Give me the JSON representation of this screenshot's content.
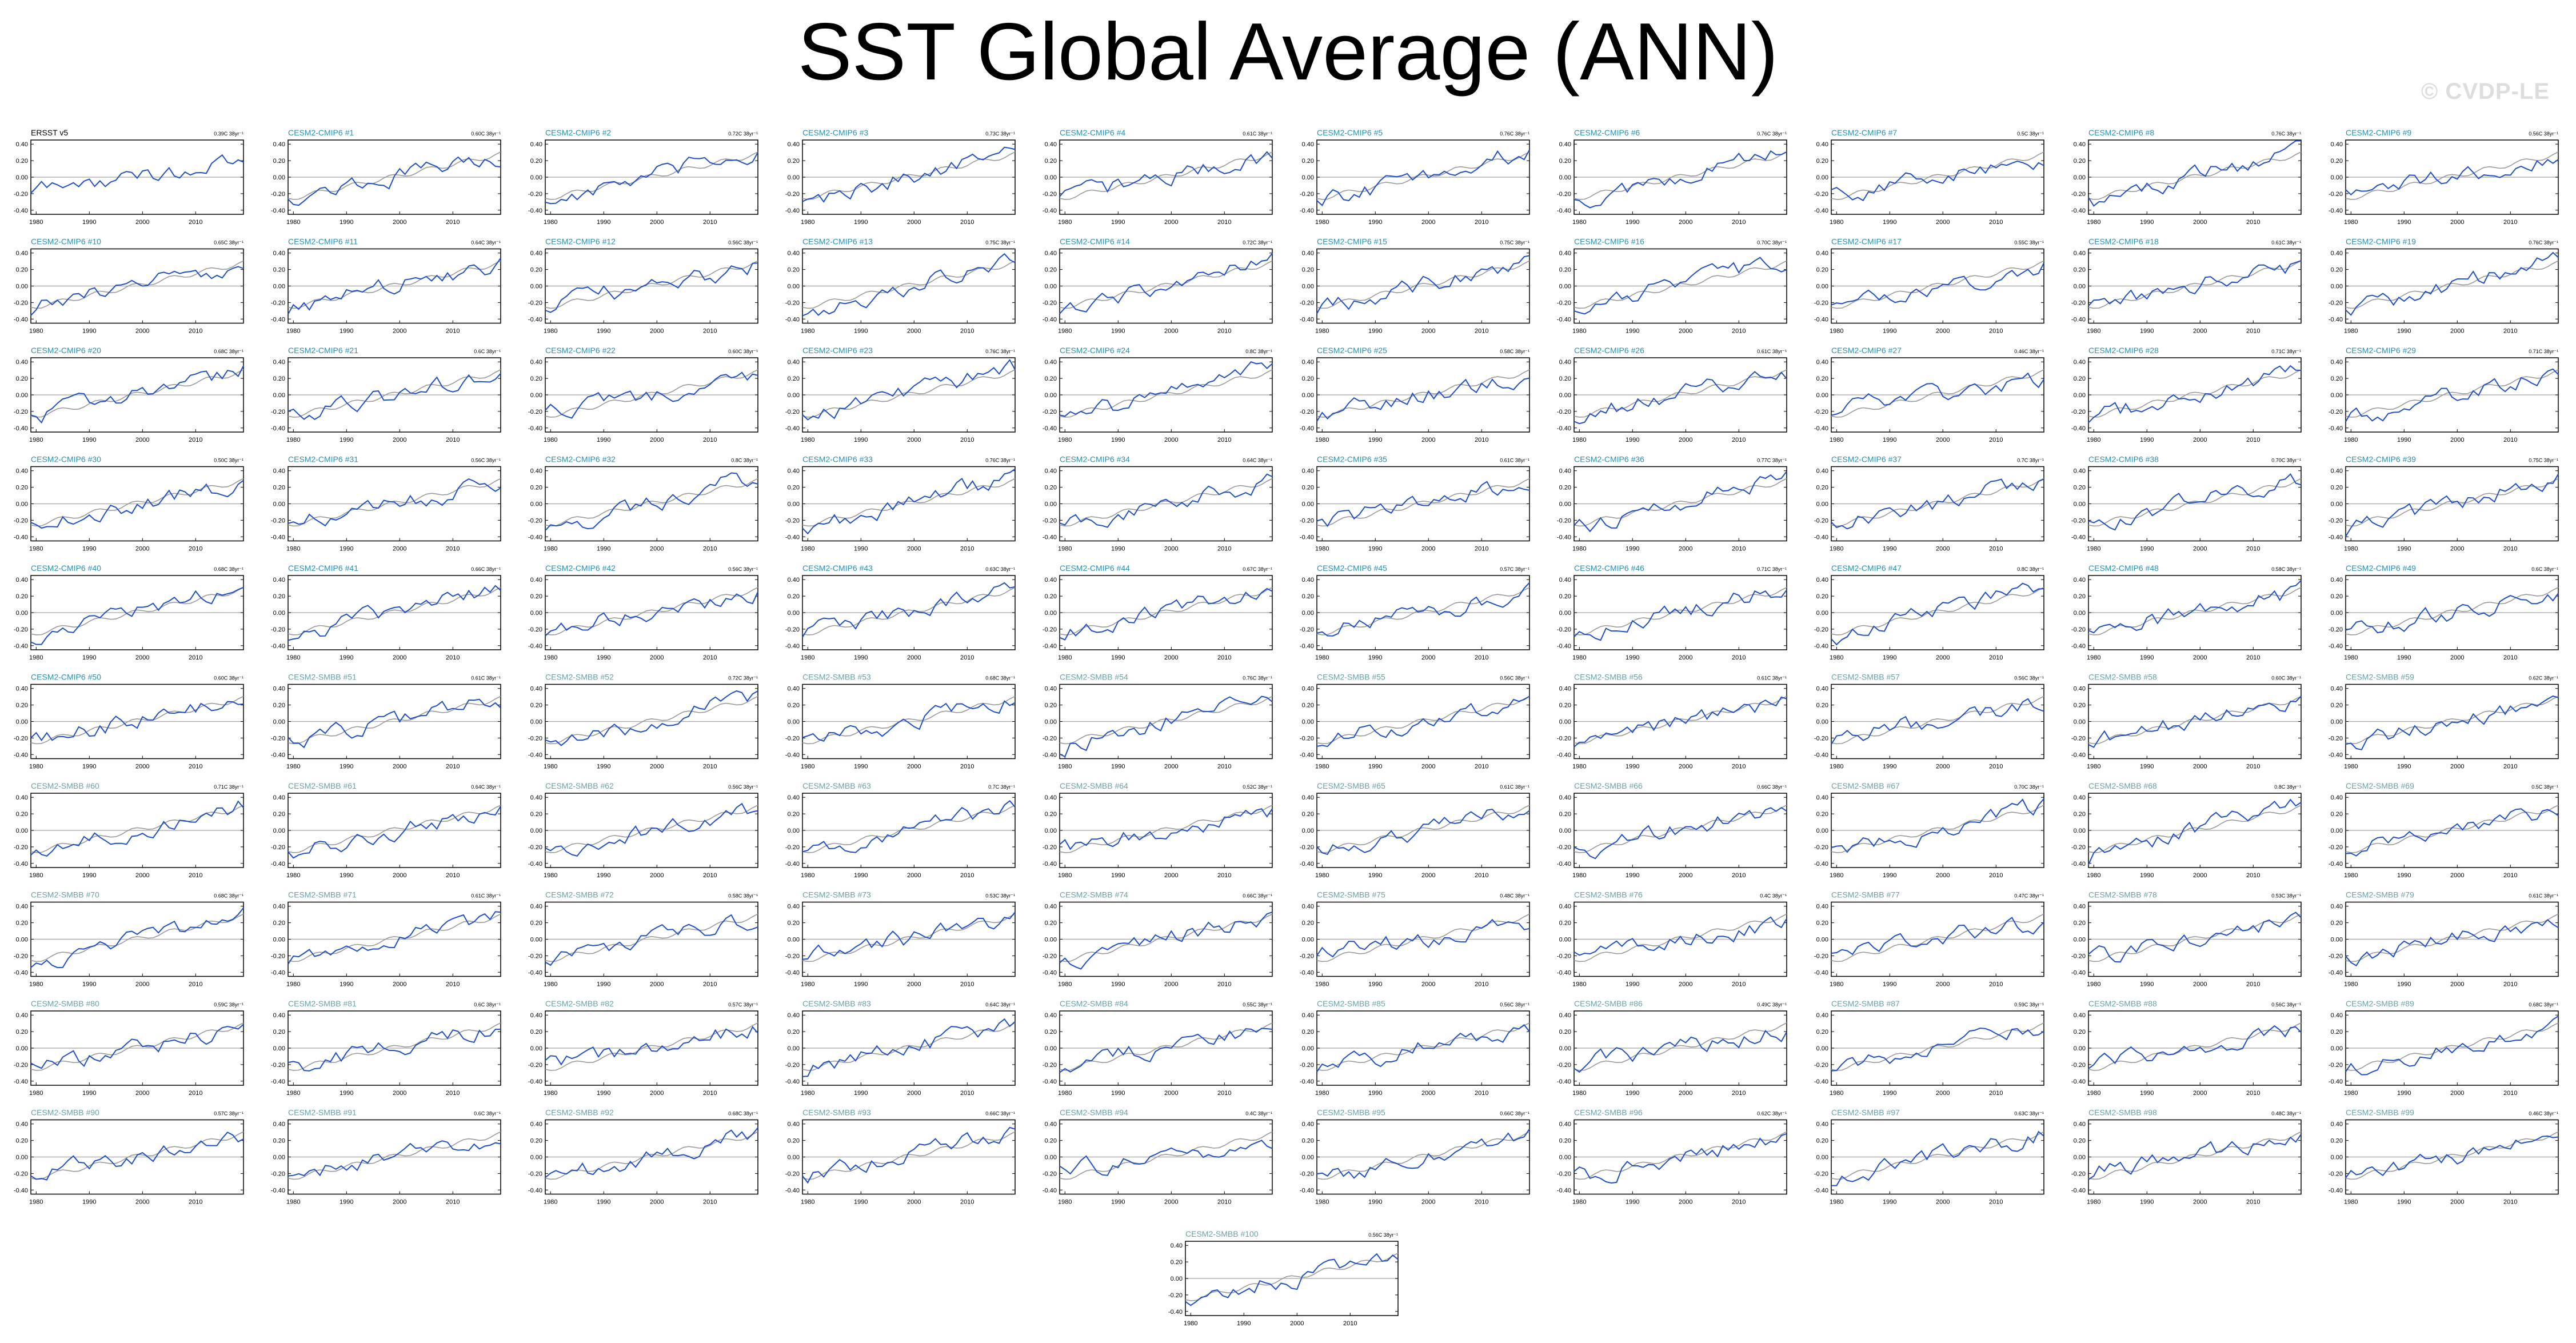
{
  "page": {
    "title": "SST Global Average (ANN)",
    "watermark": "© CVDP-LE"
  },
  "colors": {
    "observed_line": "#1f4fc4",
    "ensemble_mean_line": "#9a9a9a",
    "zero_line": "#b0b0b0",
    "cmip6_label": "#2a8fb0",
    "smbb_label": "#6aa0a8",
    "obs_label": "#000000"
  },
  "chart_data": {
    "type": "line",
    "xlabel": "",
    "ylabel": "",
    "xlim": [
      1979,
      2019
    ],
    "ylim": [
      -0.45,
      0.45
    ],
    "x_ticks": [
      "1980",
      "1990",
      "2000",
      "2010"
    ],
    "y_ticks": [
      "-0.40",
      "-0.20",
      "0.00",
      "0.20",
      "0.40"
    ],
    "panels": [
      {
        "label": "ERSST v5",
        "trend": "0.39C 38yr⁻¹",
        "group": "obs"
      },
      {
        "label": "CESM2-CMIP6 #1",
        "trend": "0.60C 38yr⁻¹",
        "group": "cmip6"
      },
      {
        "label": "CESM2-CMIP6 #2",
        "trend": "0.72C 38yr⁻¹",
        "group": "cmip6"
      },
      {
        "label": "CESM2-CMIP6 #3",
        "trend": "0.73C 38yr⁻¹",
        "group": "cmip6"
      },
      {
        "label": "CESM2-CMIP6 #4",
        "trend": "0.61C 38yr⁻¹",
        "group": "cmip6"
      },
      {
        "label": "CESM2-CMIP6 #5",
        "trend": "0.76C 38yr⁻¹",
        "group": "cmip6"
      },
      {
        "label": "CESM2-CMIP6 #6",
        "trend": "0.76C 38yr⁻¹",
        "group": "cmip6"
      },
      {
        "label": "CESM2-CMIP6 #7",
        "trend": "0.5C 38yr⁻¹",
        "group": "cmip6"
      },
      {
        "label": "CESM2-CMIP6 #8",
        "trend": "0.76C 38yr⁻¹",
        "group": "cmip6"
      },
      {
        "label": "CESM2-CMIP6 #9",
        "trend": "0.56C 38yr⁻¹",
        "group": "cmip6"
      },
      {
        "label": "CESM2-CMIP6 #10",
        "trend": "0.65C 38yr⁻¹",
        "group": "cmip6"
      },
      {
        "label": "CESM2-CMIP6 #11",
        "trend": "0.64C 38yr⁻¹",
        "group": "cmip6"
      },
      {
        "label": "CESM2-CMIP6 #12",
        "trend": "0.56C 38yr⁻¹",
        "group": "cmip6"
      },
      {
        "label": "CESM2-CMIP6 #13",
        "trend": "0.75C 38yr⁻¹",
        "group": "cmip6"
      },
      {
        "label": "CESM2-CMIP6 #14",
        "trend": "0.72C 38yr⁻¹",
        "group": "cmip6"
      },
      {
        "label": "CESM2-CMIP6 #15",
        "trend": "0.75C 38yr⁻¹",
        "group": "cmip6"
      },
      {
        "label": "CESM2-CMIP6 #16",
        "trend": "0.70C 38yr⁻¹",
        "group": "cmip6"
      },
      {
        "label": "CESM2-CMIP6 #17",
        "trend": "0.55C 38yr⁻¹",
        "group": "cmip6"
      },
      {
        "label": "CESM2-CMIP6 #18",
        "trend": "0.61C 38yr⁻¹",
        "group": "cmip6"
      },
      {
        "label": "CESM2-CMIP6 #19",
        "trend": "0.76C 38yr⁻¹",
        "group": "cmip6"
      },
      {
        "label": "CESM2-CMIP6 #20",
        "trend": "0.68C 38yr⁻¹",
        "group": "cmip6"
      },
      {
        "label": "CESM2-CMIP6 #21",
        "trend": "0.6C 38yr⁻¹",
        "group": "cmip6"
      },
      {
        "label": "CESM2-CMIP6 #22",
        "trend": "0.60C 38yr⁻¹",
        "group": "cmip6"
      },
      {
        "label": "CESM2-CMIP6 #23",
        "trend": "0.76C 38yr⁻¹",
        "group": "cmip6"
      },
      {
        "label": "CESM2-CMIP6 #24",
        "trend": "0.8C 38yr⁻¹",
        "group": "cmip6"
      },
      {
        "label": "CESM2-CMIP6 #25",
        "trend": "0.58C 38yr⁻¹",
        "group": "cmip6"
      },
      {
        "label": "CESM2-CMIP6 #26",
        "trend": "0.61C 38yr⁻¹",
        "group": "cmip6"
      },
      {
        "label": "CESM2-CMIP6 #27",
        "trend": "0.46C 38yr⁻¹",
        "group": "cmip6"
      },
      {
        "label": "CESM2-CMIP6 #28",
        "trend": "0.71C 38yr⁻¹",
        "group": "cmip6"
      },
      {
        "label": "CESM2-CMIP6 #29",
        "trend": "0.71C 38yr⁻¹",
        "group": "cmip6"
      },
      {
        "label": "CESM2-CMIP6 #30",
        "trend": "0.50C 38yr⁻¹",
        "group": "cmip6"
      },
      {
        "label": "CESM2-CMIP6 #31",
        "trend": "0.56C 38yr⁻¹",
        "group": "cmip6"
      },
      {
        "label": "CESM2-CMIP6 #32",
        "trend": "0.8C 38yr⁻¹",
        "group": "cmip6"
      },
      {
        "label": "CESM2-CMIP6 #33",
        "trend": "0.76C 38yr⁻¹",
        "group": "cmip6"
      },
      {
        "label": "CESM2-CMIP6 #34",
        "trend": "0.64C 38yr⁻¹",
        "group": "cmip6"
      },
      {
        "label": "CESM2-CMIP6 #35",
        "trend": "0.61C 38yr⁻¹",
        "group": "cmip6"
      },
      {
        "label": "CESM2-CMIP6 #36",
        "trend": "0.77C 38yr⁻¹",
        "group": "cmip6"
      },
      {
        "label": "CESM2-CMIP6 #37",
        "trend": "0.7C 38yr⁻¹",
        "group": "cmip6"
      },
      {
        "label": "CESM2-CMIP6 #38",
        "trend": "0.70C 38yr⁻¹",
        "group": "cmip6"
      },
      {
        "label": "CESM2-CMIP6 #39",
        "trend": "0.75C 38yr⁻¹",
        "group": "cmip6"
      },
      {
        "label": "CESM2-CMIP6 #40",
        "trend": "0.68C 38yr⁻¹",
        "group": "cmip6"
      },
      {
        "label": "CESM2-CMIP6 #41",
        "trend": "0.66C 38yr⁻¹",
        "group": "cmip6"
      },
      {
        "label": "CESM2-CMIP6 #42",
        "trend": "0.56C 38yr⁻¹",
        "group": "cmip6"
      },
      {
        "label": "CESM2-CMIP6 #43",
        "trend": "0.63C 38yr⁻¹",
        "group": "cmip6"
      },
      {
        "label": "CESM2-CMIP6 #44",
        "trend": "0.67C 38yr⁻¹",
        "group": "cmip6"
      },
      {
        "label": "CESM2-CMIP6 #45",
        "trend": "0.57C 38yr⁻¹",
        "group": "cmip6"
      },
      {
        "label": "CESM2-CMIP6 #46",
        "trend": "0.71C 38yr⁻¹",
        "group": "cmip6"
      },
      {
        "label": "CESM2-CMIP6 #47",
        "trend": "0.8C 38yr⁻¹",
        "group": "cmip6"
      },
      {
        "label": "CESM2-CMIP6 #48",
        "trend": "0.58C 38yr⁻¹",
        "group": "cmip6"
      },
      {
        "label": "CESM2-CMIP6 #49",
        "trend": "0.6C 38yr⁻¹",
        "group": "cmip6"
      },
      {
        "label": "CESM2-CMIP6 #50",
        "trend": "0.60C 38yr⁻¹",
        "group": "cmip6"
      },
      {
        "label": "CESM2-SMBB #51",
        "trend": "0.61C 38yr⁻¹",
        "group": "smbb"
      },
      {
        "label": "CESM2-SMBB #52",
        "trend": "0.72C 38yr⁻¹",
        "group": "smbb"
      },
      {
        "label": "CESM2-SMBB #53",
        "trend": "0.68C 38yr⁻¹",
        "group": "smbb"
      },
      {
        "label": "CESM2-SMBB #54",
        "trend": "0.76C 38yr⁻¹",
        "group": "smbb"
      },
      {
        "label": "CESM2-SMBB #55",
        "trend": "0.56C 38yr⁻¹",
        "group": "smbb"
      },
      {
        "label": "CESM2-SMBB #56",
        "trend": "0.61C 38yr⁻¹",
        "group": "smbb"
      },
      {
        "label": "CESM2-SMBB #57",
        "trend": "0.56C 38yr⁻¹",
        "group": "smbb"
      },
      {
        "label": "CESM2-SMBB #58",
        "trend": "0.60C 38yr⁻¹",
        "group": "smbb"
      },
      {
        "label": "CESM2-SMBB #59",
        "trend": "0.62C 38yr⁻¹",
        "group": "smbb"
      },
      {
        "label": "CESM2-SMBB #60",
        "trend": "0.71C 38yr⁻¹",
        "group": "smbb"
      },
      {
        "label": "CESM2-SMBB #61",
        "trend": "0.64C 38yr⁻¹",
        "group": "smbb"
      },
      {
        "label": "CESM2-SMBB #62",
        "trend": "0.56C 38yr⁻¹",
        "group": "smbb"
      },
      {
        "label": "CESM2-SMBB #63",
        "trend": "0.7C 38yr⁻¹",
        "group": "smbb"
      },
      {
        "label": "CESM2-SMBB #64",
        "trend": "0.52C 38yr⁻¹",
        "group": "smbb"
      },
      {
        "label": "CESM2-SMBB #65",
        "trend": "0.61C 38yr⁻¹",
        "group": "smbb"
      },
      {
        "label": "CESM2-SMBB #66",
        "trend": "0.66C 38yr⁻¹",
        "group": "smbb"
      },
      {
        "label": "CESM2-SMBB #67",
        "trend": "0.70C 38yr⁻¹",
        "group": "smbb"
      },
      {
        "label": "CESM2-SMBB #68",
        "trend": "0.8C 38yr⁻¹",
        "group": "smbb"
      },
      {
        "label": "CESM2-SMBB #69",
        "trend": "0.5C 38yr⁻¹",
        "group": "smbb"
      },
      {
        "label": "CESM2-SMBB #70",
        "trend": "0.68C 38yr⁻¹",
        "group": "smbb"
      },
      {
        "label": "CESM2-SMBB #71",
        "trend": "0.61C 38yr⁻¹",
        "group": "smbb"
      },
      {
        "label": "CESM2-SMBB #72",
        "trend": "0.58C 38yr⁻¹",
        "group": "smbb"
      },
      {
        "label": "CESM2-SMBB #73",
        "trend": "0.53C 38yr⁻¹",
        "group": "smbb"
      },
      {
        "label": "CESM2-SMBB #74",
        "trend": "0.66C 38yr⁻¹",
        "group": "smbb"
      },
      {
        "label": "CESM2-SMBB #75",
        "trend": "0.48C 38yr⁻¹",
        "group": "smbb"
      },
      {
        "label": "CESM2-SMBB #76",
        "trend": "0.4C 38yr⁻¹",
        "group": "smbb"
      },
      {
        "label": "CESM2-SMBB #77",
        "trend": "0.47C 38yr⁻¹",
        "group": "smbb"
      },
      {
        "label": "CESM2-SMBB #78",
        "trend": "0.53C 38yr⁻¹",
        "group": "smbb"
      },
      {
        "label": "CESM2-SMBB #79",
        "trend": "0.61C 38yr⁻¹",
        "group": "smbb"
      },
      {
        "label": "CESM2-SMBB #80",
        "trend": "0.59C 38yr⁻¹",
        "group": "smbb"
      },
      {
        "label": "CESM2-SMBB #81",
        "trend": "0.6C 38yr⁻¹",
        "group": "smbb"
      },
      {
        "label": "CESM2-SMBB #82",
        "trend": "0.57C 38yr⁻¹",
        "group": "smbb"
      },
      {
        "label": "CESM2-SMBB #83",
        "trend": "0.64C 38yr⁻¹",
        "group": "smbb"
      },
      {
        "label": "CESM2-SMBB #84",
        "trend": "0.55C 38yr⁻¹",
        "group": "smbb"
      },
      {
        "label": "CESM2-SMBB #85",
        "trend": "0.56C 38yr⁻¹",
        "group": "smbb"
      },
      {
        "label": "CESM2-SMBB #86",
        "trend": "0.49C 38yr⁻¹",
        "group": "smbb"
      },
      {
        "label": "CESM2-SMBB #87",
        "trend": "0.59C 38yr⁻¹",
        "group": "smbb"
      },
      {
        "label": "CESM2-SMBB #88",
        "trend": "0.56C 38yr⁻¹",
        "group": "smbb"
      },
      {
        "label": "CESM2-SMBB #89",
        "trend": "0.68C 38yr⁻¹",
        "group": "smbb"
      },
      {
        "label": "CESM2-SMBB #90",
        "trend": "0.57C 38yr⁻¹",
        "group": "smbb"
      },
      {
        "label": "CESM2-SMBB #91",
        "trend": "0.6C 38yr⁻¹",
        "group": "smbb"
      },
      {
        "label": "CESM2-SMBB #92",
        "trend": "0.68C 38yr⁻¹",
        "group": "smbb"
      },
      {
        "label": "CESM2-SMBB #93",
        "trend": "0.66C 38yr⁻¹",
        "group": "smbb"
      },
      {
        "label": "CESM2-SMBB #94",
        "trend": "0.4C 38yr⁻¹",
        "group": "smbb"
      },
      {
        "label": "CESM2-SMBB #95",
        "trend": "0.66C 38yr⁻¹",
        "group": "smbb"
      },
      {
        "label": "CESM2-SMBB #96",
        "trend": "0.62C 38yr⁻¹",
        "group": "smbb"
      },
      {
        "label": "CESM2-SMBB #97",
        "trend": "0.63C 38yr⁻¹",
        "group": "smbb"
      },
      {
        "label": "CESM2-SMBB #98",
        "trend": "0.48C 38yr⁻¹",
        "group": "smbb"
      },
      {
        "label": "CESM2-SMBB #99",
        "trend": "0.46C 38yr⁻¹",
        "group": "smbb"
      },
      {
        "label": "CESM2-SMBB #100",
        "trend": "0.56C 38yr⁻¹",
        "group": "smbb"
      }
    ]
  }
}
